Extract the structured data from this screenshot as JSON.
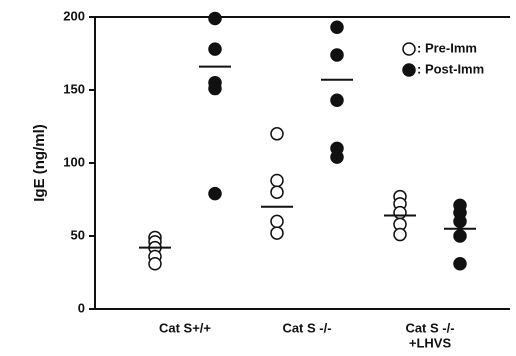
{
  "chart_data": {
    "type": "dot",
    "y_label": "IgE  (ng/ml)",
    "categories": [
      [
        "Cat S+/+"
      ],
      [
        "Cat S -/-"
      ],
      [
        "Cat S -/-",
        "+LHVS"
      ]
    ],
    "series": [
      {
        "name": ": Pre-Imm",
        "color": "#ffffff",
        "values": [
          [
            49,
            46,
            42,
            36,
            31
          ],
          [
            120,
            88,
            80,
            60,
            52
          ],
          [
            77,
            72,
            66,
            58,
            51
          ]
        ],
        "means": [
          42,
          70,
          64
        ]
      },
      {
        "name": ": Post-Imm",
        "color": "#111111",
        "values": [
          [
            199,
            178,
            155,
            151,
            79
          ],
          [
            193,
            174,
            143,
            110,
            104
          ],
          [
            71,
            66,
            60,
            50,
            31
          ]
        ],
        "means": [
          166,
          157,
          55
        ]
      }
    ],
    "ylim": [
      0,
      200
    ],
    "yticks": [
      0,
      50,
      100,
      150,
      200
    ]
  }
}
